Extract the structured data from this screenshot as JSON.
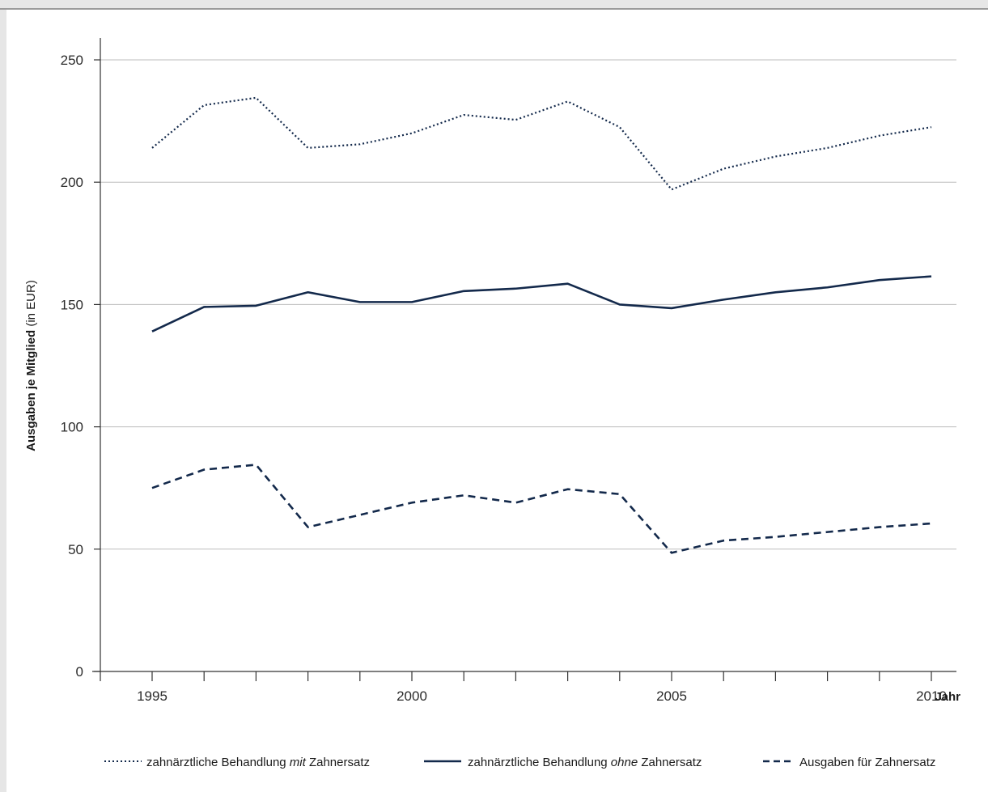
{
  "colors": {
    "series": "#13294b",
    "grid": "#bdbdbd",
    "axis": "#333333"
  },
  "chart_data": {
    "type": "line",
    "ylabel_main": "Ausgaben je Mitglied",
    "ylabel_unit": "(in EUR)",
    "xlabel": "Jahr",
    "ylim": [
      0,
      260
    ],
    "xlim": [
      1994,
      2010.5
    ],
    "yticks": [
      0,
      50,
      100,
      150,
      200,
      250
    ],
    "xticks_labeled": [
      1995,
      2000,
      2005,
      2010
    ],
    "grid": "horizontal",
    "legend_position": "bottom",
    "x": [
      1995,
      1996,
      1997,
      1998,
      1999,
      2000,
      2001,
      2002,
      2003,
      2004,
      2005,
      2006,
      2007,
      2008,
      2009,
      2010
    ],
    "series": [
      {
        "name_pre": "zahnärztliche Behandlung ",
        "name_em": "mit",
        "name_post": " Zahnersatz",
        "style": "dotted",
        "values": [
          214,
          231.5,
          234.5,
          214,
          215.5,
          220,
          227.5,
          225.5,
          233,
          222.5,
          197,
          205.5,
          210.5,
          214,
          219,
          222.5
        ]
      },
      {
        "name_pre": "zahnärztliche Behandlung ",
        "name_em": "ohne",
        "name_post": " Zahnersatz",
        "style": "solid",
        "values": [
          139,
          149,
          149.5,
          155,
          151,
          151,
          155.5,
          156.5,
          158.5,
          150,
          148.5,
          152,
          155,
          157,
          160,
          161.5
        ]
      },
      {
        "name_pre": "Ausgaben für Zahnersatz",
        "name_em": "",
        "name_post": "",
        "style": "dashed",
        "values": [
          75,
          82.5,
          84.5,
          59,
          64,
          69,
          72,
          69,
          74.5,
          72.5,
          48.5,
          53.5,
          55,
          57,
          59,
          60.5
        ]
      }
    ]
  }
}
